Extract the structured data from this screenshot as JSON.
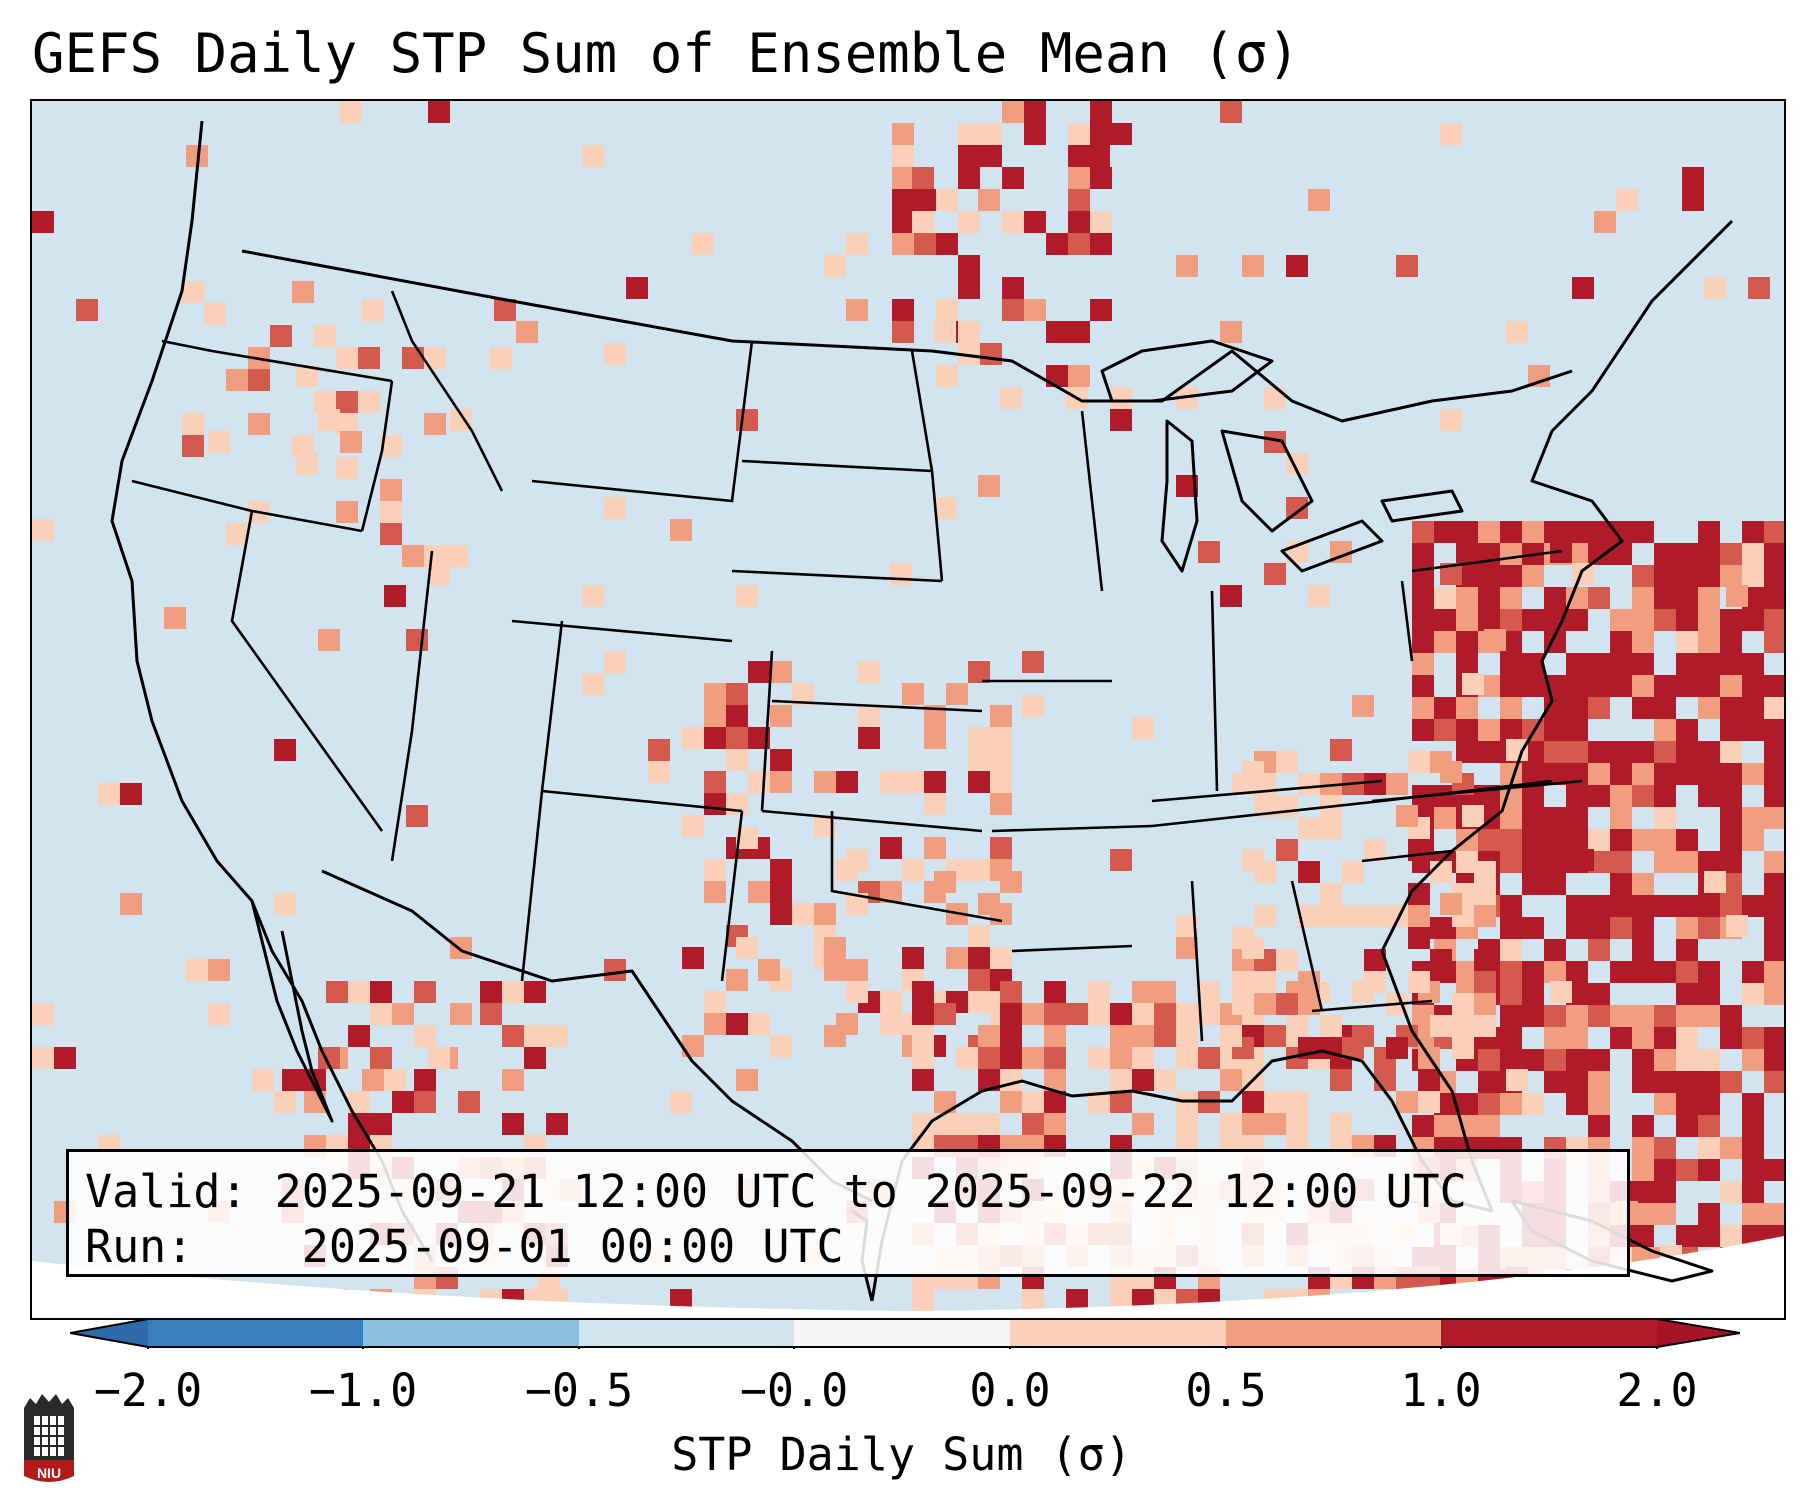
{
  "title": "GEFS Daily STP Sum of Ensemble Mean (σ)",
  "info": {
    "valid_label": "Valid:",
    "valid_value": "2025-09-21 12:00 UTC to 2025-09-22 12:00 UTC",
    "run_label": "Run:",
    "run_value": "2025-09-01 00:00 UTC"
  },
  "colorbar": {
    "label": "STP Daily Sum (σ)",
    "tick_labels": [
      "−2.0",
      "−1.0",
      "−0.5",
      "−0.0",
      "0.0",
      "0.5",
      "1.0",
      "2.0"
    ],
    "bin_colors": [
      "#3a7fbd",
      "#8cbfdd",
      "#d2e4f0",
      "#f5f5f5",
      "#fbd0b8",
      "#f19d80",
      "#d35a4c",
      "#b01b2a"
    ],
    "min_extend_color": "#2f6aab",
    "max_extend_color": "#a51427"
  },
  "logo": {
    "text": "NIU",
    "color": "#b31b1b"
  }
}
